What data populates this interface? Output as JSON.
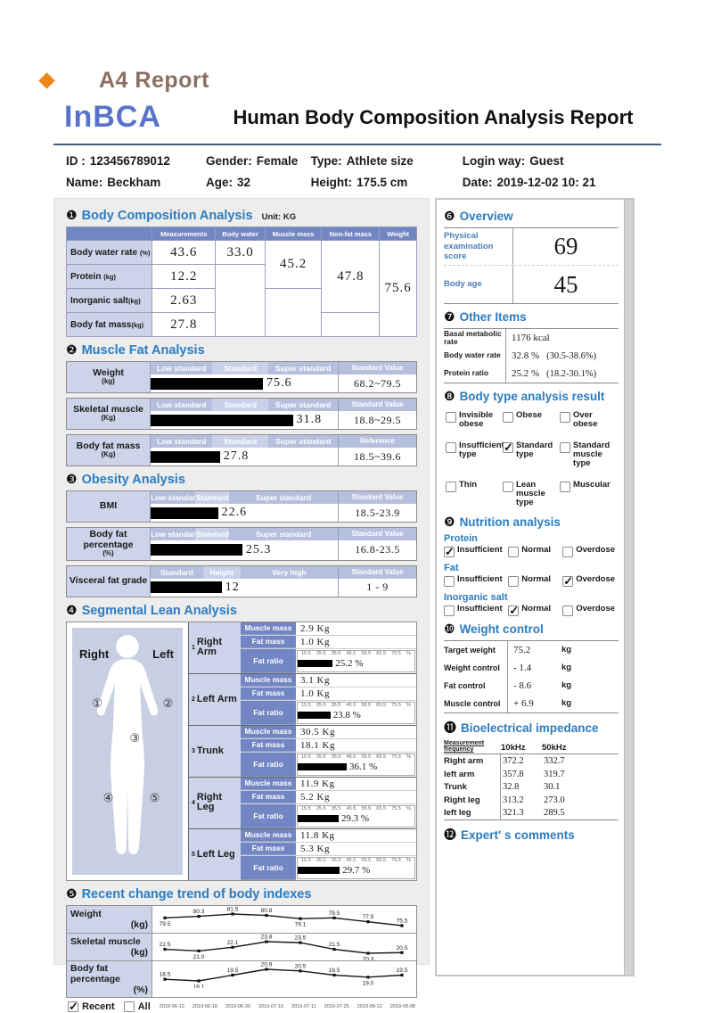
{
  "page_label": "A4 Report",
  "header": {
    "logo": "InBCA",
    "title": "Human Body Composition Analysis Report",
    "info_row1": [
      {
        "label": "ID :",
        "value": "123456789012"
      },
      {
        "label": "Gender:",
        "value": "Female"
      },
      {
        "label": "Type:",
        "value": "Athlete size"
      },
      {
        "label": "Login way:",
        "value": "Guest"
      }
    ],
    "info_row2": [
      {
        "label": "Name:",
        "value": "Beckham"
      },
      {
        "label": "Age:",
        "value": "32"
      },
      {
        "label": "Height:",
        "value": "175.5 cm"
      },
      {
        "label": "Date:",
        "value": "2019-12-02 10: 21"
      }
    ]
  },
  "body_composition": {
    "num": "❶",
    "title": "Body Composition Analysis",
    "unit": "Unit: KG",
    "columns": [
      "Measurements",
      "Body water",
      "Muscle mass",
      "Non-fat mass",
      "Weight"
    ],
    "row_labels": [
      {
        "name": "Body water rate",
        "unit": "(%)"
      },
      {
        "name": "Protein",
        "unit": "(kg)"
      },
      {
        "name": "Inorganic salt",
        "unit": "(kg)"
      },
      {
        "name": "Body fat mass",
        "unit": "(kg)"
      }
    ],
    "measurements": [
      "43.6",
      "12.2",
      "2.63",
      "27.8"
    ],
    "body_water": "33.0",
    "muscle_mass": "45.2",
    "non_fat_mass": "47.8",
    "weight": "75.6"
  },
  "muscle_fat": {
    "num": "❷",
    "title": "Muscle Fat Analysis",
    "rows": [
      {
        "label": "Weight",
        "unit": "(kg)",
        "seg1": "Low standard",
        "seg2": "Standard",
        "seg3": "Super standard",
        "value": "75.6",
        "bar": 60,
        "std_header": "Standard Value",
        "std_value": "68.2~79.5"
      },
      {
        "label": "Skeletal muscle",
        "unit": "(Kg)",
        "seg1": "Low standard",
        "seg2": "Standard",
        "seg3": "Super standard",
        "value": "31.8",
        "bar": 76,
        "std_header": "Standard Value",
        "std_value": "18.8~29.5"
      },
      {
        "label": "Body fat mass",
        "unit": "(Kg)",
        "seg1": "Low standard",
        "seg2": "Standard",
        "seg3": "Super standard",
        "value": "27.8",
        "bar": 37,
        "std_header": "Reference",
        "std_value": "18.5~39.6"
      }
    ]
  },
  "obesity": {
    "num": "❸",
    "title": "Obesity Analysis",
    "rows": [
      {
        "label": "BMI",
        "unit": "",
        "seg1": "Low standard",
        "seg2": "Standard",
        "seg3": "Super standard",
        "seg1w": 24,
        "seg2w": 18,
        "value": "22.6",
        "bar": 36,
        "std_header": "Standard Value",
        "std_value": "18.5-23.9"
      },
      {
        "label": "Body fat percentage",
        "unit": "(%)",
        "seg1": "Low standard",
        "seg2": "Standard",
        "seg3": "Super standard",
        "seg1w": 24,
        "seg2w": 18,
        "value": "25.3",
        "bar": 49,
        "std_header": "Standard Value",
        "std_value": "16.8-23.5"
      },
      {
        "label": "Visceral fat grade",
        "unit": "",
        "seg1": "Standard",
        "seg2": "Height",
        "seg3": "Very high",
        "seg1w": 28,
        "seg2w": 20,
        "value": "12",
        "bar": 38,
        "std_header": "Standard Value",
        "std_value": "1 - 9"
      }
    ]
  },
  "segmental": {
    "num": "❹",
    "title": "Segmental Lean Analysis",
    "figure": {
      "right_label": "Right",
      "left_label": "Left",
      "marks": [
        "①",
        "②",
        "③",
        "④",
        "⑤"
      ]
    },
    "ticks": [
      "15.5",
      "25.5",
      "35.5",
      "45.5",
      "55.5",
      "65.5",
      "75.5",
      "%"
    ],
    "groups": [
      {
        "no": "1",
        "name": "Right Arm",
        "muscle_label": "Muscle mass",
        "fat_label": "Fat mass",
        "ratio_label": "Fat ratio",
        "muscle": "2.9 Kg",
        "fat": "1.0 Kg",
        "ratio": "25.2 %",
        "bar": 30
      },
      {
        "no": "2",
        "name": "Left Arm",
        "muscle_label": "Muscle mass",
        "fat_label": "Fat mass",
        "ratio_label": "Fat ratio",
        "muscle": "3.1 Kg",
        "fat": "1.0 Kg",
        "ratio": "23.8 %",
        "bar": 28
      },
      {
        "no": "3",
        "name": "Trunk",
        "muscle_label": "Muscle mass",
        "fat_label": "Fat mass",
        "ratio_label": "Fat ratio",
        "muscle": "30.5 Kg",
        "fat": "18.1 Kg",
        "ratio": "36.1 %",
        "bar": 42
      },
      {
        "no": "4",
        "name": "Right Leg",
        "muscle_label": "Muscle mass",
        "fat_label": "Fat mass",
        "ratio_label": "Fat ratio",
        "muscle": "11.9 Kg",
        "fat": "5.2 Kg",
        "ratio": "29.3 %",
        "bar": 35
      },
      {
        "no": "5",
        "name": "Left Leg",
        "muscle_label": "Muscle mass",
        "fat_label": "Fat mass",
        "ratio_label": "Fat ratio",
        "muscle": "11.8 Kg",
        "fat": "5.3 Kg",
        "ratio": "29.7 %",
        "bar": 36
      }
    ]
  },
  "trend": {
    "num": "❺",
    "title": "Recent change trend of body indexes",
    "recent_label": "Recent",
    "all_label": "All",
    "recent_checked": true,
    "all_checked": false,
    "dates": [
      "2019-06-12",
      "2019-06-18",
      "2019-06-30",
      "2019-07-10",
      "2019-07-11",
      "2019-07-25",
      "2019-08-12",
      "2019-09-08"
    ],
    "series": [
      {
        "label": "Weight",
        "unit": "(kg)",
        "values": [
          79.5,
          80.3,
          81.5,
          80.8,
          79.1,
          79.5,
          77.5,
          75.5
        ]
      },
      {
        "label": "Skeletal muscle",
        "unit": "(kg)",
        "values": [
          21.5,
          21.0,
          22.1,
          23.8,
          23.5,
          21.5,
          20.3,
          20.5
        ]
      },
      {
        "label": "Body fat percentage",
        "unit": "(%)",
        "values": [
          18.5,
          18.1,
          19.5,
          20.9,
          20.5,
          19.5,
          19.0,
          19.5
        ]
      }
    ]
  },
  "chart_data": {
    "type": "line",
    "x": [
      "2019-06-12",
      "2019-06-18",
      "2019-06-30",
      "2019-07-10",
      "2019-07-11",
      "2019-07-25",
      "2019-08-12",
      "2019-09-08"
    ],
    "series": [
      {
        "name": "Weight (kg)",
        "values": [
          79.5,
          80.3,
          81.5,
          80.8,
          79.1,
          79.5,
          77.5,
          75.5
        ]
      },
      {
        "name": "Skeletal muscle (kg)",
        "values": [
          21.5,
          21.0,
          22.1,
          23.8,
          23.5,
          21.5,
          20.3,
          20.5
        ]
      },
      {
        "name": "Body fat percentage (%)",
        "values": [
          18.5,
          18.1,
          19.5,
          20.9,
          20.5,
          19.5,
          19.0,
          19.5
        ]
      }
    ],
    "title": "Recent change trend of body indexes"
  },
  "overview": {
    "num": "❻",
    "title": "Overview",
    "rows": [
      {
        "label": "Physical examination score",
        "value": "69"
      },
      {
        "label": "Body age",
        "value": "45"
      }
    ]
  },
  "other_items": {
    "num": "❼",
    "title": "Other Items",
    "rows": [
      {
        "label": "Basal metabolic rate",
        "value": "1176 kcal",
        "range": ""
      },
      {
        "label": "Body water rate",
        "value": "32.8 %",
        "range": "(30.5-38.6%)"
      },
      {
        "label": "Protein ratio",
        "value": "25.2 %",
        "range": "(18.2-30.1%)"
      }
    ]
  },
  "body_type": {
    "num": "❽",
    "title": "Body type analysis result",
    "options": [
      {
        "label": "Invisible obese",
        "checked": false
      },
      {
        "label": "Obese",
        "checked": false
      },
      {
        "label": "Over obese",
        "checked": false
      },
      {
        "label": "Insufficient type",
        "checked": false
      },
      {
        "label": "Standard type",
        "checked": true
      },
      {
        "label": "Standard muscle type",
        "checked": false
      },
      {
        "label": "Thin",
        "checked": false
      },
      {
        "label": "Lean muscle type",
        "checked": false
      },
      {
        "label": "Muscular",
        "checked": false
      }
    ]
  },
  "nutrition": {
    "num": "❾",
    "title": "Nutrition analysis",
    "groups": [
      {
        "name": "Protein",
        "options": [
          {
            "label": "Insufficient",
            "checked": true
          },
          {
            "label": "Normal",
            "checked": false
          },
          {
            "label": "Overdose",
            "checked": false
          }
        ]
      },
      {
        "name": "Fat",
        "options": [
          {
            "label": "Insufficient",
            "checked": false
          },
          {
            "label": "Normal",
            "checked": false
          },
          {
            "label": "Overdose",
            "checked": true
          }
        ]
      },
      {
        "name": "Inorganic salt",
        "options": [
          {
            "label": "Insufficient",
            "checked": false
          },
          {
            "label": "Normal",
            "checked": true
          },
          {
            "label": "Overdose",
            "checked": false
          }
        ]
      }
    ]
  },
  "weight_control": {
    "num": "❿",
    "title": "Weight control",
    "rows": [
      {
        "label": "Target weight",
        "value": "75.2",
        "unit": "kg"
      },
      {
        "label": "Weight control",
        "value": "- 1.4",
        "unit": "kg"
      },
      {
        "label": "Fat control",
        "value": "- 8.6",
        "unit": "kg"
      },
      {
        "label": "Muscle control",
        "value": "+ 6.9",
        "unit": "kg"
      }
    ]
  },
  "impedance": {
    "num": "⓫",
    "title": "Bioelectrical impedance",
    "col_header": "Measurement frequency",
    "freq1": "10kHz",
    "freq2": "50kHz",
    "rows": [
      {
        "label": "Right arm",
        "v1": "372.2",
        "v2": "332.7"
      },
      {
        "label": "left arm",
        "v1": "357.8",
        "v2": "319.7"
      },
      {
        "label": "Trunk",
        "v1": "32.8",
        "v2": "30.1"
      },
      {
        "label": "Right leg",
        "v1": "313.2",
        "v2": "273.0"
      },
      {
        "label": "left leg",
        "v1": "321.3",
        "v2": "289.5"
      }
    ]
  },
  "expert": {
    "num": "⓬",
    "title": "Expert' s comments"
  }
}
